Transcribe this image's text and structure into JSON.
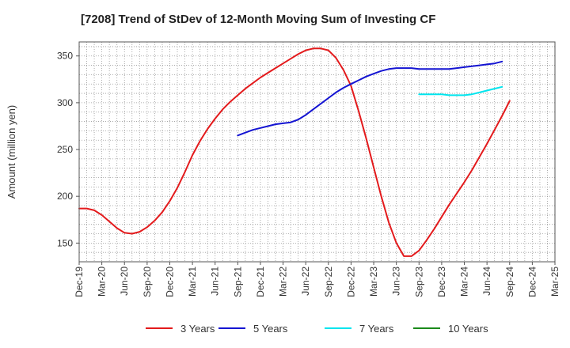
{
  "title": "[7208]  Trend of StDev of 12-Month Moving Sum of Investing CF",
  "chart_data": {
    "type": "line",
    "title": "[7208]  Trend of StDev of 12-Month Moving Sum of Investing CF",
    "xlabel": "",
    "ylabel": "Amount (million yen)",
    "ylim": [
      130,
      365
    ],
    "yticks": [
      150,
      200,
      250,
      300,
      350
    ],
    "x_tick_labels": [
      "Dec-19",
      "Mar-20",
      "Jun-20",
      "Sep-20",
      "Dec-20",
      "Mar-21",
      "Jun-21",
      "Sep-21",
      "Dec-21",
      "Mar-22",
      "Jun-22",
      "Sep-22",
      "Dec-22",
      "Mar-23",
      "Jun-23",
      "Sep-23",
      "Dec-23",
      "Mar-24",
      "Jun-24",
      "Sep-24",
      "Dec-24",
      "Mar-25"
    ],
    "grid": true,
    "legend_position": "bottom",
    "series": [
      {
        "name": "3 Years",
        "color": "#e31a1c",
        "start_index": 0,
        "values": [
          187,
          187,
          185,
          180,
          173,
          166,
          161,
          160,
          162,
          167,
          174,
          183,
          195,
          209,
          226,
          244,
          259,
          272,
          283,
          293,
          301,
          308,
          315,
          321,
          327,
          332,
          337,
          342,
          347,
          352,
          356,
          358,
          358,
          356,
          348,
          335,
          318,
          291,
          262,
          231,
          200,
          172,
          150,
          136,
          136,
          142,
          153,
          165,
          178,
          191,
          203,
          215,
          228,
          242,
          256,
          271,
          286,
          302
        ]
      },
      {
        "name": "5 Years",
        "color": "#1414d2",
        "start_index": 21,
        "values": [
          265,
          268,
          271,
          273,
          275,
          277,
          278,
          279,
          282,
          287,
          293,
          299,
          305,
          311,
          316,
          320,
          324,
          328,
          331,
          334,
          336,
          337,
          337,
          337,
          336,
          336,
          336,
          336,
          336,
          337,
          338,
          339,
          340,
          341,
          342,
          344
        ]
      },
      {
        "name": "7 Years",
        "color": "#00e5ee",
        "start_index": 45,
        "values": [
          309,
          309,
          309,
          309,
          308,
          308,
          308,
          309,
          311,
          313,
          315,
          317
        ]
      },
      {
        "name": "10 Years",
        "color": "#1a8a1a",
        "start_index": 0,
        "values": []
      }
    ]
  }
}
